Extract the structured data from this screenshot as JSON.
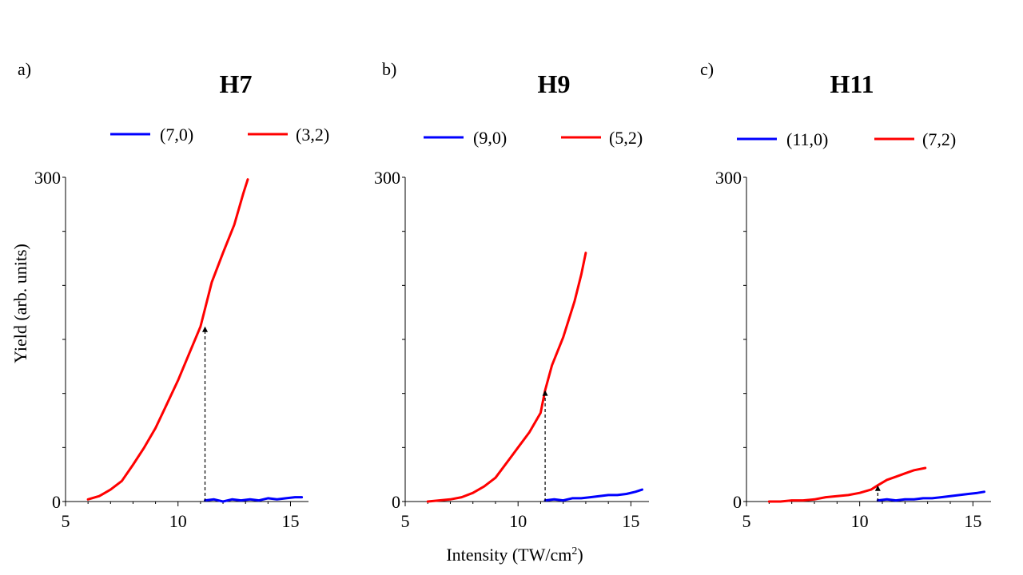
{
  "colors": {
    "blue": "#0000ff",
    "red": "#ff0000"
  },
  "axis_labels": {
    "ylabel": "Yield (arb. units)",
    "xlabel": "Intensity (TW/cm",
    "xlabel_sup": "2",
    "xlabel_end": ")"
  },
  "chart_data": [
    {
      "type": "line",
      "panel_label": "a)",
      "title": "H7",
      "xlim": [
        5,
        15.8
      ],
      "ylim": [
        0,
        300
      ],
      "xticks": [
        5,
        10,
        15
      ],
      "yticks": [
        0,
        300
      ],
      "marker_x": 11.2,
      "marker_y": 162,
      "series": [
        {
          "name": "(7,0)",
          "color": "blue",
          "x": [
            11.2,
            11.6,
            12.0,
            12.4,
            12.8,
            13.2,
            13.6,
            14.0,
            14.4,
            14.8,
            15.2,
            15.5
          ],
          "y": [
            1,
            2,
            0,
            2,
            1,
            2,
            1,
            3,
            2,
            3,
            4,
            4
          ]
        },
        {
          "name": "(3,2)",
          "color": "red",
          "x": [
            6.0,
            6.5,
            7.0,
            7.5,
            8.0,
            8.5,
            9.0,
            9.5,
            10.0,
            10.5,
            11.0,
            11.5,
            12.0,
            12.5,
            12.9,
            13.1
          ],
          "y": [
            2,
            5,
            11,
            19,
            34,
            50,
            68,
            90,
            112,
            137,
            162,
            203,
            230,
            256,
            285,
            298
          ]
        }
      ]
    },
    {
      "type": "line",
      "panel_label": "b)",
      "title": "H9",
      "xlim": [
        5,
        15.8
      ],
      "ylim": [
        0,
        300
      ],
      "xticks": [
        5,
        10,
        15
      ],
      "yticks": [
        0,
        300
      ],
      "marker_x": 11.2,
      "marker_y": 103,
      "series": [
        {
          "name": "(9,0)",
          "color": "blue",
          "x": [
            11.2,
            11.6,
            12.0,
            12.4,
            12.8,
            13.2,
            13.6,
            14.0,
            14.4,
            14.8,
            15.2,
            15.5
          ],
          "y": [
            1,
            2,
            1,
            3,
            3,
            4,
            5,
            6,
            6,
            7,
            9,
            11
          ]
        },
        {
          "name": "(5,2)",
          "color": "red",
          "x": [
            6.0,
            6.5,
            7.0,
            7.5,
            8.0,
            8.5,
            9.0,
            9.5,
            10.0,
            10.5,
            11.0,
            11.2,
            11.5,
            12.0,
            12.5,
            12.8,
            13.0
          ],
          "y": [
            0,
            1,
            2,
            4,
            8,
            14,
            22,
            36,
            50,
            64,
            82,
            103,
            126,
            152,
            185,
            210,
            230
          ]
        }
      ]
    },
    {
      "type": "line",
      "panel_label": "c)",
      "title": "H11",
      "xlim": [
        5,
        15.8
      ],
      "ylim": [
        0,
        300
      ],
      "xticks": [
        5,
        10,
        15
      ],
      "yticks": [
        0,
        300
      ],
      "marker_x": 10.8,
      "marker_y": 15,
      "series": [
        {
          "name": "(11,0)",
          "color": "blue",
          "x": [
            10.8,
            11.2,
            11.6,
            12.0,
            12.4,
            12.8,
            13.2,
            13.6,
            14.0,
            14.4,
            14.8,
            15.2,
            15.5
          ],
          "y": [
            1,
            2,
            1,
            2,
            2,
            3,
            3,
            4,
            5,
            6,
            7,
            8,
            9
          ]
        },
        {
          "name": "(7,2)",
          "color": "red",
          "x": [
            6.0,
            6.5,
            7.0,
            7.5,
            8.0,
            8.5,
            9.0,
            9.5,
            10.0,
            10.5,
            10.8,
            11.2,
            11.6,
            12.0,
            12.4,
            12.9
          ],
          "y": [
            0,
            0,
            1,
            1,
            2,
            4,
            5,
            6,
            8,
            11,
            15,
            20,
            23,
            26,
            29,
            31
          ]
        }
      ]
    }
  ]
}
